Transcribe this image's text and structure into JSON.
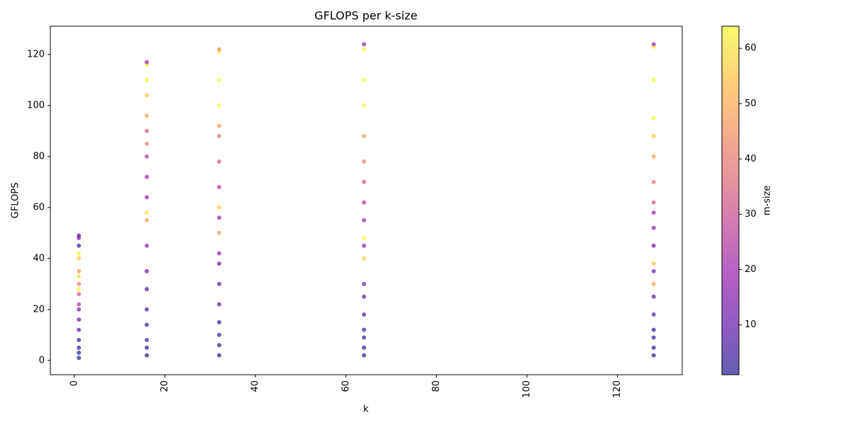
{
  "chart_data": {
    "type": "scatter",
    "title": "GFLOPS per k-size",
    "x_label": "k",
    "y_label": "GFLOPS",
    "colorbar_label": "m-size",
    "colormap": "plasma",
    "alpha": 0.65,
    "xlim": [
      -5.3,
      134.3
    ],
    "ylim": [
      -5.6,
      131.1
    ],
    "xticks": [
      0,
      20,
      40,
      60,
      80,
      100,
      120
    ],
    "yticks": [
      0,
      20,
      40,
      60,
      80,
      100,
      120
    ],
    "clim": [
      1,
      64
    ],
    "cticks": [
      10,
      20,
      30,
      40,
      50,
      60
    ],
    "x": [
      1,
      1,
      1,
      1,
      1,
      1,
      1,
      1,
      1,
      1,
      1,
      1,
      1,
      1,
      1,
      1,
      1,
      1,
      16,
      16,
      16,
      16,
      16,
      16,
      16,
      16,
      16,
      16,
      16,
      16,
      16,
      16,
      16,
      16,
      16,
      16,
      16,
      16,
      32,
      32,
      32,
      32,
      32,
      32,
      32,
      32,
      32,
      32,
      32,
      32,
      32,
      32,
      32,
      32,
      32,
      32,
      32,
      64,
      64,
      64,
      64,
      64,
      64,
      64,
      64,
      64,
      64,
      64,
      64,
      64,
      64,
      64,
      64,
      64,
      64,
      64,
      128,
      128,
      128,
      128,
      128,
      128,
      128,
      128,
      128,
      128,
      128,
      128,
      128,
      128,
      128,
      128,
      128,
      128,
      128,
      128
    ],
    "y": [
      1,
      3,
      5,
      8,
      12,
      16,
      48,
      20,
      22,
      26,
      30,
      35,
      40,
      42,
      28,
      33,
      45,
      49,
      2,
      5,
      8,
      14,
      20,
      28,
      35,
      45,
      64,
      72,
      80,
      90,
      85,
      96,
      104,
      110,
      116,
      58,
      55,
      117,
      2,
      6,
      10,
      15,
      22,
      30,
      38,
      42,
      56,
      68,
      78,
      88,
      92,
      60,
      100,
      110,
      121,
      50,
      122,
      2,
      5,
      9,
      12,
      18,
      25,
      30,
      45,
      55,
      62,
      70,
      78,
      88,
      40,
      100,
      110,
      122,
      124,
      48,
      2,
      5,
      9,
      12,
      18,
      25,
      35,
      45,
      52,
      58,
      62,
      70,
      80,
      88,
      95,
      110,
      123,
      124,
      38,
      30
    ],
    "m": [
      1,
      1,
      2,
      4,
      8,
      12,
      16,
      16,
      24,
      32,
      40,
      48,
      56,
      64,
      64,
      60,
      4,
      8,
      1,
      2,
      4,
      4,
      8,
      8,
      12,
      16,
      16,
      20,
      24,
      32,
      40,
      48,
      56,
      64,
      64,
      60,
      48,
      20,
      1,
      2,
      4,
      4,
      8,
      8,
      12,
      16,
      20,
      24,
      32,
      40,
      48,
      56,
      64,
      64,
      64,
      48,
      44,
      1,
      2,
      4,
      4,
      8,
      8,
      12,
      16,
      20,
      24,
      32,
      40,
      48,
      56,
      64,
      64,
      64,
      20,
      64,
      1,
      2,
      4,
      4,
      8,
      8,
      12,
      12,
      16,
      20,
      32,
      40,
      48,
      56,
      64,
      64,
      64,
      20,
      56,
      48
    ]
  }
}
